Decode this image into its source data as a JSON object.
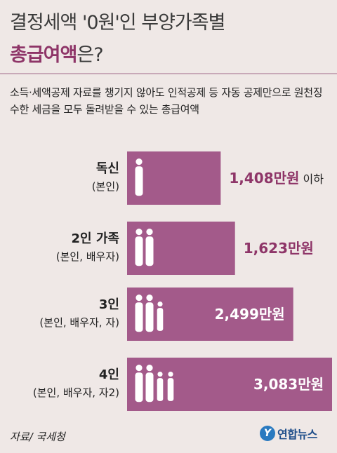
{
  "title": {
    "line1": "결정세액 '0원'인 부양가족별",
    "line2_accent": "총급여액",
    "line2_rest": "은?"
  },
  "subtitle": "소득·세액공제 자료를 챙기지 않아도 인적공제 등 자동 공제만으로 원천징수한 세금을 모두 돌려받을 수 있는 총급여액",
  "source": "자료/ 국세청",
  "logo": {
    "icon": "Y",
    "text": "연합뉴스"
  },
  "colors": {
    "bar": "#a35a8a",
    "accent": "#8e3568",
    "background": "#efe8e6",
    "figure": "#ffffff"
  },
  "chart_data": {
    "type": "bar",
    "orientation": "horizontal",
    "categories": [
      {
        "label": "독신",
        "sublabel": "(본인)",
        "figures": 1
      },
      {
        "label": "2인 가족",
        "sublabel": "(본인, 배우자)",
        "figures": 2
      },
      {
        "label": "3인",
        "sublabel": "(본인, 배우자, 자)",
        "figures": 3
      },
      {
        "label": "4인",
        "sublabel": "(본인, 배우자, 자2)",
        "figures": 4
      }
    ],
    "values": [
      1408,
      1623,
      2499,
      3083
    ],
    "value_labels": [
      "1,408만원",
      "1,623만원",
      "2,499만원",
      "3,083만원"
    ],
    "value_suffixes": [
      "이하",
      "",
      "",
      ""
    ],
    "unit": "만원"
  }
}
